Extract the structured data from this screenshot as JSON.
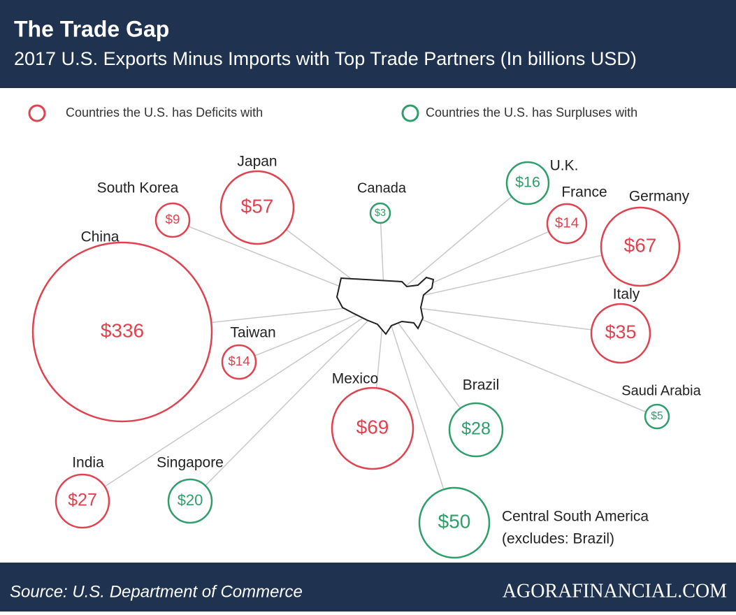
{
  "header": {
    "title": "The Trade Gap",
    "subtitle": "2017 U.S. Exports Minus Imports with Top Trade Partners (In billions USD)"
  },
  "legend": [
    {
      "label": "Countries the U.S. has Deficits with",
      "type": "deficit"
    },
    {
      "label": "Countries the U.S. has Surpluses with",
      "type": "surplus"
    }
  ],
  "nodes": [
    {
      "name": "China",
      "label": "$336",
      "type": "deficit"
    },
    {
      "name": "South Korea",
      "label": "$9",
      "type": "deficit"
    },
    {
      "name": "Japan",
      "label": "$57",
      "type": "deficit"
    },
    {
      "name": "Canada",
      "label": "$3",
      "type": "surplus"
    },
    {
      "name": "U.K.",
      "label": "$16",
      "type": "surplus"
    },
    {
      "name": "France",
      "label": "$14",
      "type": "deficit"
    },
    {
      "name": "Germany",
      "label": "$67",
      "type": "deficit"
    },
    {
      "name": "Italy",
      "label": "$35",
      "type": "deficit"
    },
    {
      "name": "Taiwan",
      "label": "$14",
      "type": "deficit"
    },
    {
      "name": "Mexico",
      "label": "$69",
      "type": "deficit"
    },
    {
      "name": "Brazil",
      "label": "$28",
      "type": "surplus"
    },
    {
      "name": "Saudi Arabia",
      "label": "$5",
      "type": "surplus"
    },
    {
      "name": "India",
      "label": "$27",
      "type": "deficit"
    },
    {
      "name": "Singapore",
      "label": "$20",
      "type": "surplus"
    },
    {
      "name": "Central South America",
      "note": "(excludes: Brazil)",
      "label": "$50",
      "type": "surplus"
    }
  ],
  "footer": {
    "source": "Source: U.S. Department of Commerce",
    "brand": "AGORAFINANCIAL.COM"
  }
}
